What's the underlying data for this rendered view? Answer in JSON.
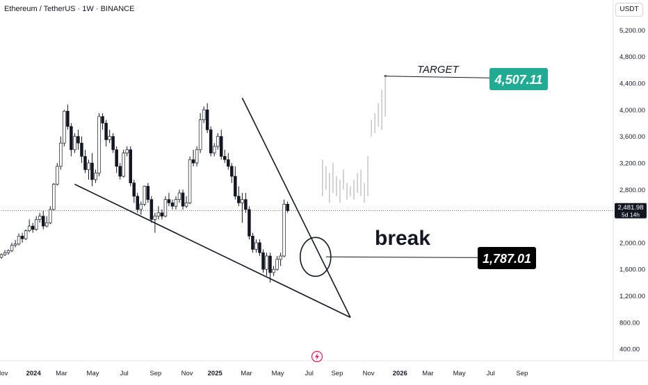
{
  "header": {
    "symbol_title": "Ethereum / TetherUS · 1W · BINANCE",
    "currency": "USDT"
  },
  "colors": {
    "up": "#ffffff",
    "down": "#131722",
    "outline": "#131722",
    "projection": "#c8c8c8",
    "target_bg": "#22ab94",
    "break_bg": "#000000",
    "axis_text": "#131722",
    "last_price_bg": "#131722"
  },
  "annotations": {
    "target_label": "TARGET",
    "target_price": "4,507.11",
    "break_label": "break",
    "break_price": "1,787.01",
    "last_price": "2,481.98",
    "countdown": "5d 14h",
    "logo_icon": "tradingview-lightning-icon"
  },
  "chart_data": {
    "type": "candlestick",
    "title": "Ethereum / TetherUS · 1W · BINANCE",
    "unit": "USDT",
    "y_ticks": [
      "5,200.00",
      "4,800.00",
      "4,400.00",
      "4,000.00",
      "3,600.00",
      "3,200.00",
      "2,800.00",
      "2,000.00",
      "1,600.00",
      "1,200.00",
      "800.00",
      "400.00"
    ],
    "y_tick_values": [
      5200,
      4800,
      4400,
      4000,
      3600,
      3200,
      2800,
      2000,
      1600,
      1200,
      800,
      400
    ],
    "ylim": [
      250,
      5400
    ],
    "x_ticks": [
      "Nov",
      "2024",
      "Mar",
      "May",
      "Jul",
      "Sep",
      "Nov",
      "2025",
      "Mar",
      "May",
      "Jul",
      "Sep",
      "Nov",
      "2026",
      "Mar",
      "May",
      "Jul",
      "Sep"
    ],
    "x_tick_weeks": [
      0,
      9,
      17,
      26,
      35,
      44,
      53,
      61,
      70,
      79,
      88,
      96,
      105,
      114,
      122,
      131,
      140,
      149
    ],
    "ohlc": [
      [
        1780,
        1840,
        1760,
        1820
      ],
      [
        1820,
        1890,
        1800,
        1850
      ],
      [
        1850,
        1900,
        1820,
        1880
      ],
      [
        1880,
        2000,
        1860,
        1960
      ],
      [
        1960,
        2040,
        1930,
        1980
      ],
      [
        1980,
        2140,
        1960,
        2100
      ],
      [
        2100,
        2150,
        2000,
        2060
      ],
      [
        2060,
        2200,
        2040,
        2180
      ],
      [
        2180,
        2350,
        2160,
        2250
      ],
      [
        2250,
        2300,
        2150,
        2200
      ],
      [
        2200,
        2400,
        2180,
        2350
      ],
      [
        2350,
        2450,
        2300,
        2400
      ],
      [
        2400,
        2480,
        2200,
        2250
      ],
      [
        2250,
        2400,
        2230,
        2300
      ],
      [
        2300,
        2550,
        2280,
        2500
      ],
      [
        2500,
        2900,
        2480,
        2880
      ],
      [
        2880,
        3200,
        2860,
        3150
      ],
      [
        3150,
        3600,
        3100,
        3500
      ],
      [
        3500,
        4000,
        3450,
        3980
      ],
      [
        3980,
        4080,
        3700,
        3750
      ],
      [
        3750,
        3800,
        3300,
        3400
      ],
      [
        3400,
        3650,
        3350,
        3600
      ],
      [
        3600,
        3700,
        3400,
        3500
      ],
      [
        3500,
        3600,
        3200,
        3300
      ],
      [
        3300,
        3400,
        3050,
        3100
      ],
      [
        3100,
        3250,
        2950,
        3200
      ],
      [
        3200,
        3350,
        2850,
        2950
      ],
      [
        2950,
        3100,
        2900,
        3050
      ],
      [
        3050,
        3950,
        3000,
        3900
      ],
      [
        3900,
        3950,
        3700,
        3800
      ],
      [
        3800,
        3850,
        3450,
        3550
      ],
      [
        3550,
        3700,
        3500,
        3600
      ],
      [
        3600,
        3650,
        3350,
        3400
      ],
      [
        3400,
        3450,
        3050,
        3150
      ],
      [
        3150,
        3200,
        2950,
        3000
      ],
      [
        3000,
        3400,
        2980,
        3350
      ],
      [
        3350,
        3450,
        3300,
        3400
      ],
      [
        3400,
        3450,
        2850,
        2900
      ],
      [
        2900,
        2950,
        2600,
        2700
      ],
      [
        2700,
        2750,
        2450,
        2500
      ],
      [
        2500,
        2620,
        2420,
        2580
      ],
      [
        2580,
        2860,
        2550,
        2850
      ],
      [
        2850,
        2900,
        2600,
        2650
      ],
      [
        2650,
        2700,
        2300,
        2350
      ],
      [
        2350,
        2450,
        2150,
        2400
      ],
      [
        2400,
        2550,
        2350,
        2450
      ],
      [
        2450,
        2500,
        2350,
        2400
      ],
      [
        2400,
        2700,
        2380,
        2650
      ],
      [
        2650,
        2750,
        2550,
        2600
      ],
      [
        2600,
        2650,
        2500,
        2550
      ],
      [
        2550,
        2700,
        2500,
        2650
      ],
      [
        2650,
        2800,
        2600,
        2750
      ],
      [
        2750,
        2800,
        2500,
        2550
      ],
      [
        2550,
        2700,
        2520,
        2600
      ],
      [
        2600,
        3300,
        2580,
        3250
      ],
      [
        3250,
        3400,
        3150,
        3200
      ],
      [
        3200,
        3450,
        3150,
        3400
      ],
      [
        3400,
        3950,
        3350,
        3850
      ],
      [
        3850,
        4050,
        3800,
        4000
      ],
      [
        4000,
        4100,
        3650,
        3700
      ],
      [
        3700,
        3750,
        3300,
        3350
      ],
      [
        3350,
        3500,
        3300,
        3450
      ],
      [
        3450,
        3650,
        3400,
        3600
      ],
      [
        3600,
        3700,
        3250,
        3300
      ],
      [
        3300,
        3400,
        3200,
        3250
      ],
      [
        3250,
        3350,
        3100,
        3150
      ],
      [
        3150,
        3200,
        2900,
        3000
      ],
      [
        3000,
        3150,
        2650,
        2700
      ],
      [
        2700,
        2850,
        2550,
        2600
      ],
      [
        2600,
        2750,
        2300,
        2650
      ],
      [
        2650,
        2750,
        2450,
        2500
      ],
      [
        2500,
        2550,
        2050,
        2100
      ],
      [
        2100,
        2150,
        1850,
        1900
      ],
      [
        1900,
        2050,
        1850,
        2000
      ],
      [
        2000,
        2050,
        1800,
        1850
      ],
      [
        1850,
        1900,
        1550,
        1600
      ],
      [
        1600,
        1850,
        1500,
        1800
      ],
      [
        1800,
        1850,
        1400,
        1550
      ],
      [
        1550,
        1650,
        1500,
        1600
      ],
      [
        1600,
        1800,
        1580,
        1750
      ],
      [
        1750,
        1850,
        1650,
        1800
      ],
      [
        1800,
        2650,
        1780,
        2580
      ],
      [
        2580,
        2620,
        2450,
        2482
      ]
    ],
    "projection_start_week": 92,
    "projection": [
      [
        2700,
        3250
      ],
      [
        2800,
        3150
      ],
      [
        2600,
        3050
      ],
      [
        2750,
        3200
      ],
      [
        2700,
        3000
      ],
      [
        2600,
        2950
      ],
      [
        2800,
        3100
      ],
      [
        2650,
        2900
      ],
      [
        2700,
        2850
      ],
      [
        2650,
        2950
      ],
      [
        2750,
        3050
      ],
      [
        2700,
        3100
      ],
      [
        2600,
        2900
      ],
      [
        2700,
        3300
      ],
      [
        3600,
        3850
      ],
      [
        3650,
        3950
      ],
      [
        3750,
        4100
      ],
      [
        3700,
        4300
      ],
      [
        3900,
        4507
      ]
    ],
    "trendlines": [
      {
        "name": "support",
        "from": [
          21,
          2880
        ],
        "to": [
          100,
          875
        ]
      },
      {
        "name": "resistance",
        "from": [
          69,
          4180
        ],
        "to": [
          100,
          875
        ]
      },
      {
        "name": "target-line",
        "from": [
          110,
          4507
        ],
        "to": [
          141,
          4480
        ]
      },
      {
        "name": "break-line",
        "from": [
          93,
          1787
        ],
        "to": [
          141,
          1775
        ]
      },
      {
        "name": "current-price",
        "from": [
          0,
          2481.98
        ],
        "to": [
          182,
          2481.98
        ]
      }
    ],
    "circle": {
      "week": 90,
      "price": 1787,
      "rx": 4.5,
      "ry": 420
    }
  }
}
